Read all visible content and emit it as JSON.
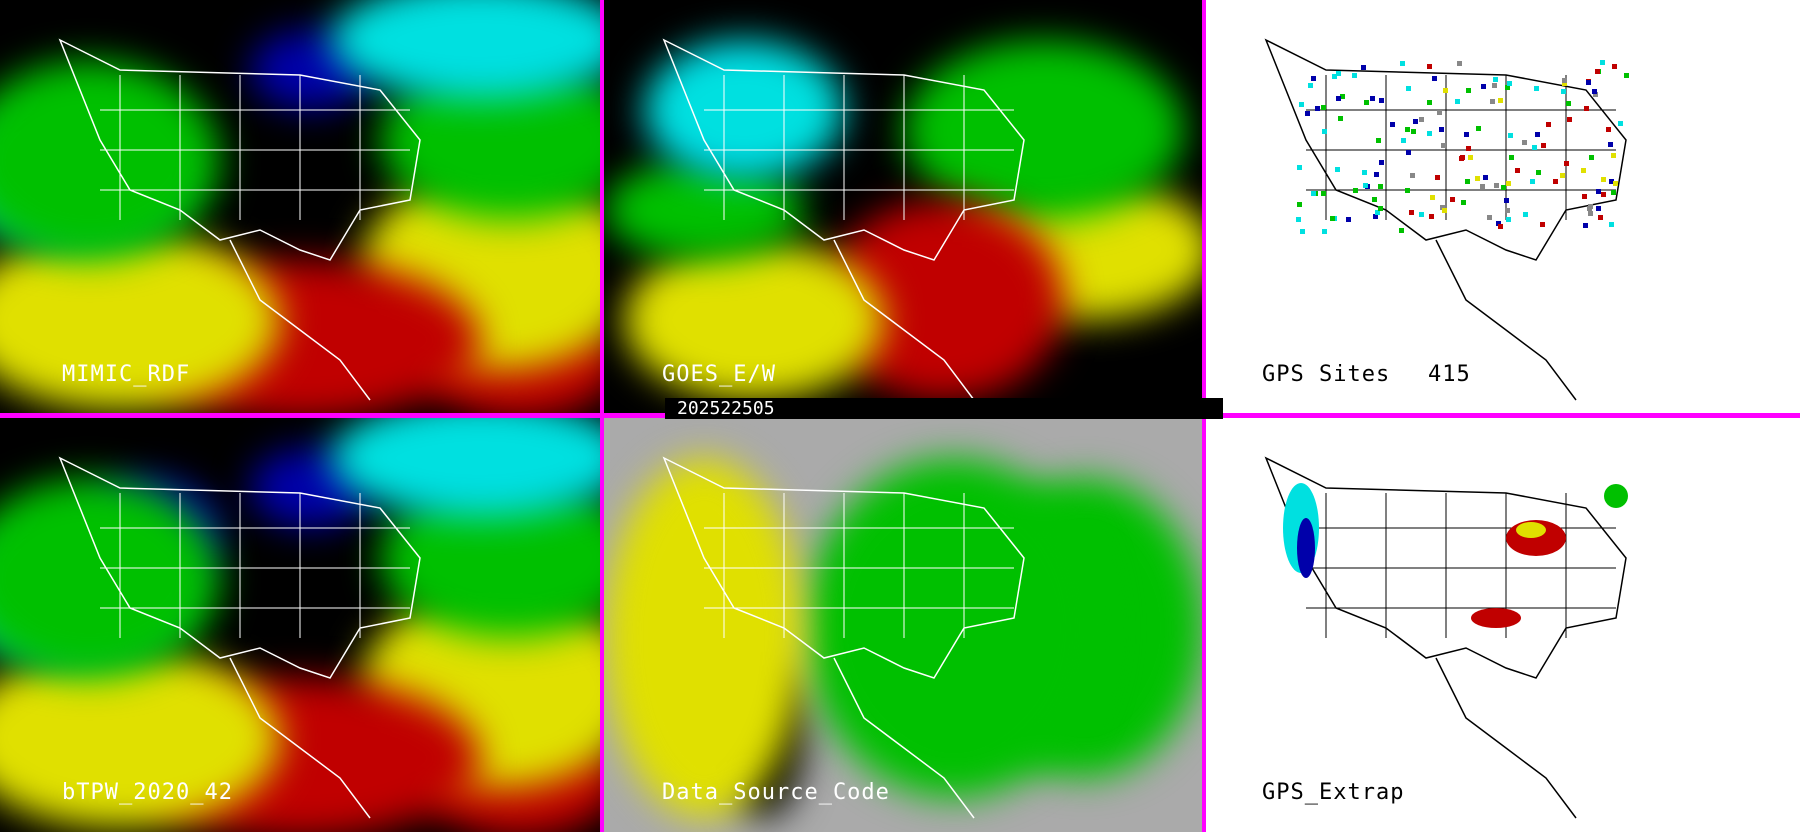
{
  "panels": [
    {
      "label": "MIMIC_RDF"
    },
    {
      "label": "GOES_E/W"
    },
    {
      "label": "GPS Sites",
      "count": "415"
    },
    {
      "label": "bTPW_2020_42"
    },
    {
      "label": "Data_Source_Code"
    },
    {
      "label": "GPS_Extrap"
    }
  ],
  "timestamp": "202522505",
  "colors": {
    "divider": "#ff00ff",
    "dry": "#0000aa",
    "low": "#00e0e0",
    "mid": "#00c000",
    "moist": "#e0e000",
    "high": "#c00000",
    "missing": "#000000",
    "source_gray": "#aaaaaa"
  }
}
